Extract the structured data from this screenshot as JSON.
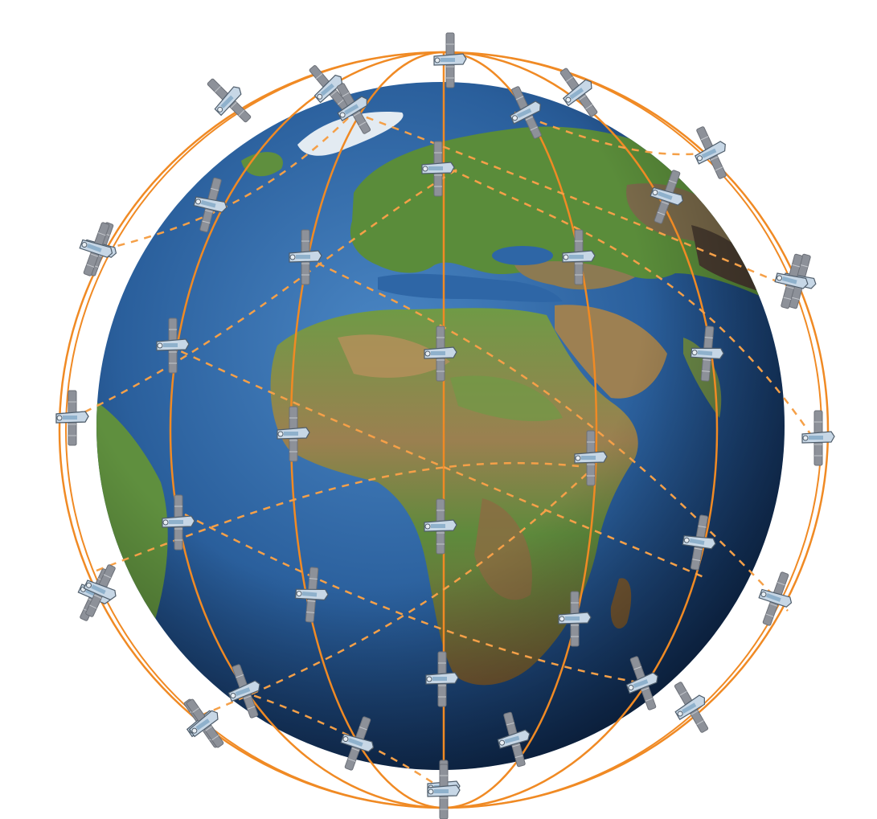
{
  "colors": {
    "background": "#ffffff",
    "ocean_light": "#3f78b8",
    "ocean_dark": "#0f2f5e",
    "land_green": "#4f8a3a",
    "land_light": "#7fae52",
    "land_brown": "#9a7a4a",
    "land_dark": "#4b3b2a",
    "ice": "#e6eef5",
    "orbit": "#f08a24",
    "satellite_body": "#c9d8e6",
    "satellite_panel": "#8a8f98"
  },
  "icons": {
    "satellite": "satellite-icon",
    "globe": "earth-globe-icon"
  },
  "satellites": [
    {
      "id": "p1-1",
      "orbit": "orbit-plane-1"
    },
    {
      "id": "p1-2",
      "orbit": "orbit-plane-1"
    },
    {
      "id": "p1-3",
      "orbit": "orbit-plane-1"
    },
    {
      "id": "p1-4",
      "orbit": "orbit-plane-1"
    },
    {
      "id": "p1-5",
      "orbit": "orbit-plane-1"
    },
    {
      "id": "p2-1",
      "orbit": "orbit-plane-2"
    },
    {
      "id": "p2-2",
      "orbit": "orbit-plane-2"
    },
    {
      "id": "p2-3",
      "orbit": "orbit-plane-2"
    },
    {
      "id": "p2-4",
      "orbit": "orbit-plane-2"
    },
    {
      "id": "p2-5",
      "orbit": "orbit-plane-2"
    },
    {
      "id": "p2-6",
      "orbit": "orbit-plane-2"
    },
    {
      "id": "p3-1",
      "orbit": "orbit-plane-3"
    },
    {
      "id": "p3-2",
      "orbit": "orbit-plane-3"
    },
    {
      "id": "p3-3",
      "orbit": "orbit-plane-3"
    },
    {
      "id": "p3-4",
      "orbit": "orbit-plane-3"
    },
    {
      "id": "p3-5",
      "orbit": "orbit-plane-3"
    },
    {
      "id": "p4-1",
      "orbit": "orbit-plane-4"
    },
    {
      "id": "p4-2",
      "orbit": "orbit-plane-4"
    },
    {
      "id": "p4-3",
      "orbit": "orbit-plane-4"
    },
    {
      "id": "p4-4",
      "orbit": "orbit-plane-4"
    },
    {
      "id": "p4-5",
      "orbit": "orbit-plane-4"
    },
    {
      "id": "p4-6",
      "orbit": "orbit-plane-4"
    },
    {
      "id": "p4-7",
      "orbit": "orbit-plane-4"
    },
    {
      "id": "p4-8",
      "orbit": "orbit-plane-4"
    },
    {
      "id": "p5-1",
      "orbit": "orbit-plane-5"
    },
    {
      "id": "p5-2",
      "orbit": "orbit-plane-5"
    },
    {
      "id": "p5-3",
      "orbit": "orbit-plane-5"
    },
    {
      "id": "p5-4",
      "orbit": "orbit-plane-5"
    },
    {
      "id": "p5-5",
      "orbit": "orbit-plane-5"
    },
    {
      "id": "p5-6",
      "orbit": "orbit-plane-5"
    },
    {
      "id": "p6-1",
      "orbit": "orbit-plane-6"
    },
    {
      "id": "p6-2",
      "orbit": "orbit-plane-6"
    },
    {
      "id": "p6-3",
      "orbit": "orbit-plane-6"
    },
    {
      "id": "p6-4",
      "orbit": "orbit-plane-6"
    },
    {
      "id": "p6-5",
      "orbit": "orbit-plane-6"
    },
    {
      "id": "p7-1",
      "orbit": "orbit-plane-7"
    },
    {
      "id": "p7-2",
      "orbit": "orbit-plane-7"
    },
    {
      "id": "p7-3",
      "orbit": "orbit-plane-7"
    },
    {
      "id": "p7-4",
      "orbit": "orbit-plane-7"
    },
    {
      "id": "p7-5",
      "orbit": "orbit-plane-7"
    },
    {
      "id": "p7-6",
      "orbit": "orbit-plane-7"
    },
    {
      "id": "p7-7",
      "orbit": "orbit-plane-7"
    }
  ]
}
